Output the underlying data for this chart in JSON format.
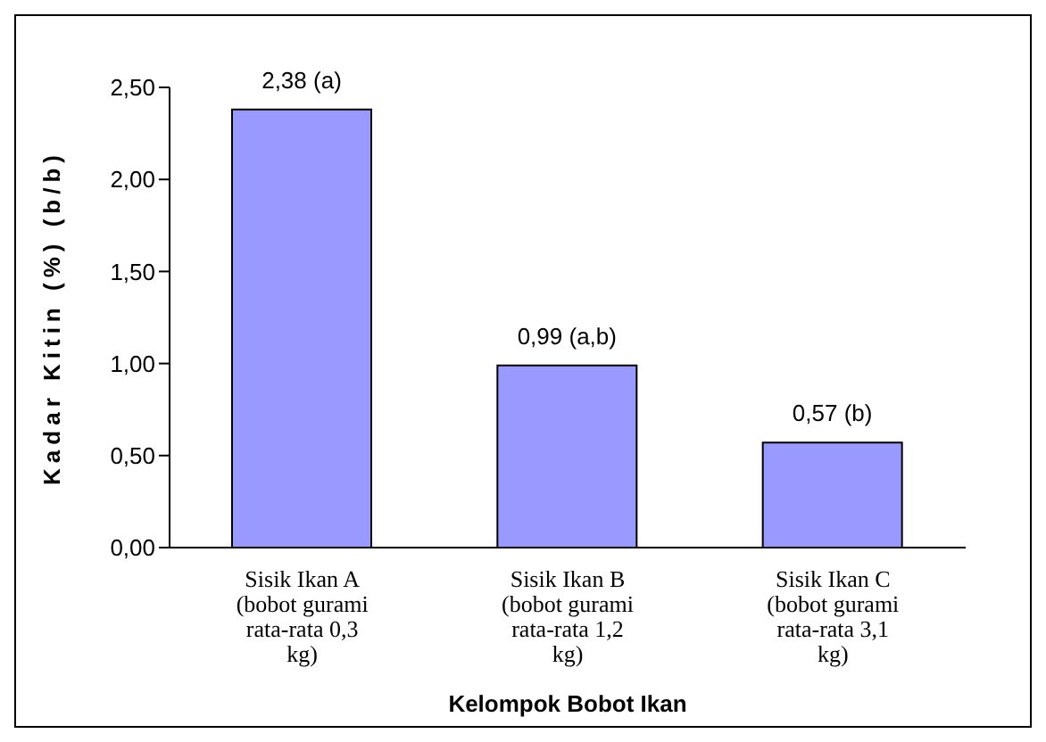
{
  "chart_data": {
    "type": "bar",
    "xlabel": "Kelompok Bobot Ikan",
    "ylabel": "Kadar Kitin (%) (b/b)",
    "categories": [
      "Sisik Ikan A (bobot gurami rata-rata 0,3 kg)",
      "Sisik Ikan B (bobot gurami rata-rata 1,2 kg)",
      "Sisik Ikan C (bobot gurami rata-rata 3,1 kg)"
    ],
    "values": [
      2.38,
      0.99,
      0.57
    ],
    "color": "#9999ff",
    "value_labels": [
      "2,38 (a)",
      "0,99 (a,b)",
      "0,57 (b)"
    ],
    "ylim": [
      0,
      2.5
    ],
    "yticks": [
      {
        "value": 0,
        "label": "0,00"
      },
      {
        "value": 0.5,
        "label": "0,50"
      },
      {
        "value": 1,
        "label": "1,00"
      },
      {
        "value": 1.5,
        "label": "1,50"
      },
      {
        "value": 2,
        "label": "2,00"
      },
      {
        "value": 2.5,
        "label": "2,50"
      }
    ],
    "grid": false,
    "legend": false
  }
}
